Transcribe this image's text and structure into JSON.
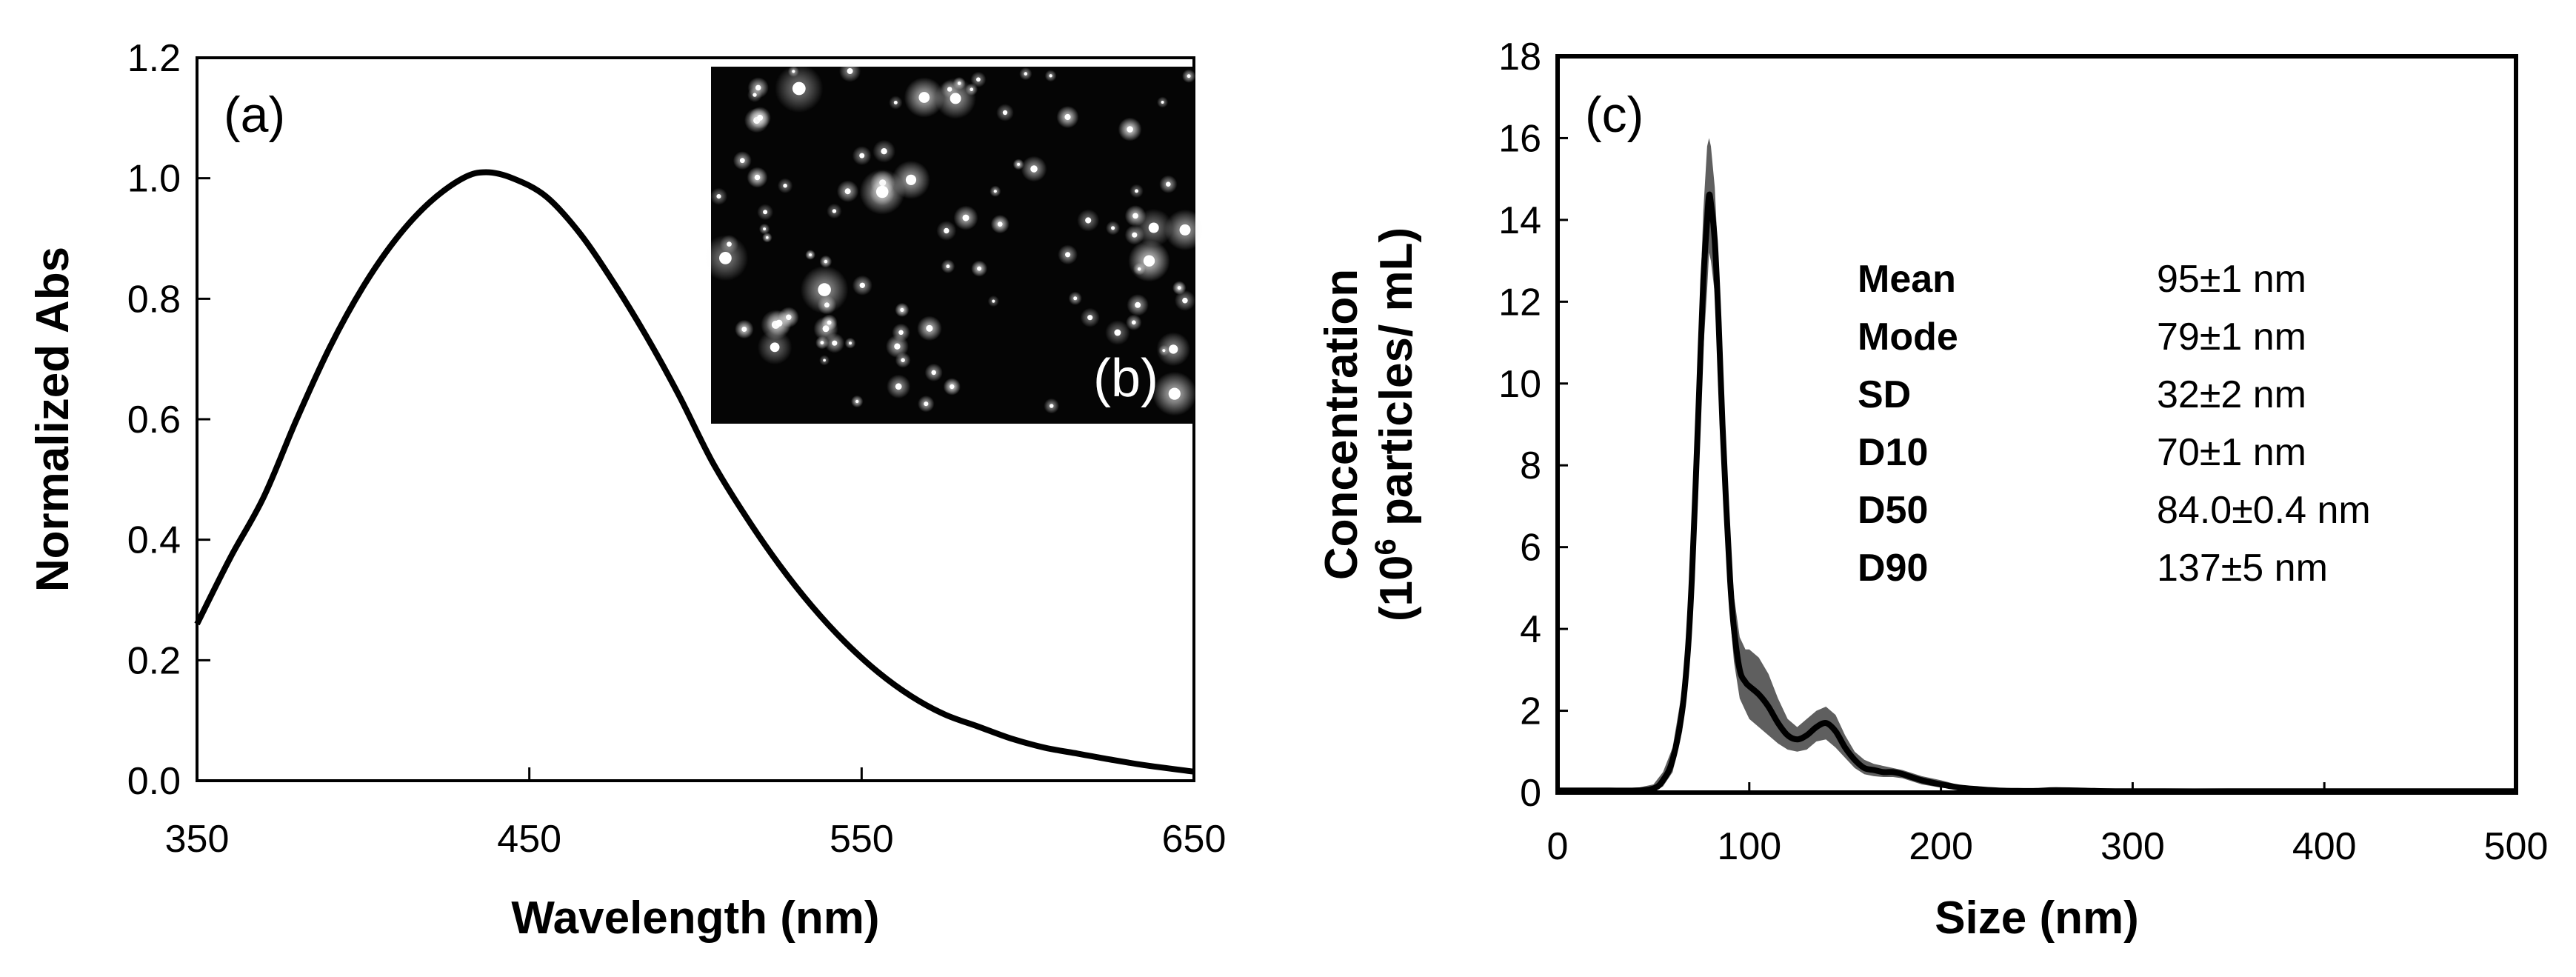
{
  "chart_data": [
    {
      "type": "line",
      "panel_label": "(a)",
      "title": "",
      "xlabel": "Wavelength (nm)",
      "ylabel": "Normalized Abs",
      "xlim": [
        350,
        650
      ],
      "ylim": [
        0.0,
        1.2
      ],
      "x_ticks": [
        "350",
        "450",
        "550",
        "650"
      ],
      "y_ticks": [
        "0.0",
        "0.2",
        "0.4",
        "0.6",
        "0.8",
        "1.0",
        "1.2"
      ],
      "grid": false,
      "series": [
        {
          "name": "Absorbance",
          "x": [
            350,
            360,
            370,
            380,
            390,
            400,
            410,
            420,
            430,
            437,
            445,
            455,
            465,
            475,
            485,
            495,
            505,
            515,
            525,
            535,
            545,
            555,
            565,
            575,
            585,
            595,
            605,
            615,
            625,
            635,
            650
          ],
          "y": [
            0.26,
            0.37,
            0.47,
            0.6,
            0.72,
            0.82,
            0.9,
            0.96,
            1.0,
            1.01,
            1.0,
            0.97,
            0.91,
            0.83,
            0.74,
            0.64,
            0.53,
            0.44,
            0.36,
            0.29,
            0.23,
            0.18,
            0.14,
            0.11,
            0.09,
            0.07,
            0.055,
            0.045,
            0.035,
            0.026,
            0.015
          ]
        }
      ],
      "inset": {
        "label": "(b)",
        "content": "dark-field particle image"
      }
    },
    {
      "type": "line",
      "panel_label": "(c)",
      "title": "",
      "xlabel": "Size (nm)",
      "ylabel_line1": "Concentration",
      "ylabel_line2_prefix": "(10",
      "ylabel_line2_sup": "6",
      "ylabel_line2_suffix": " particles/ mL)",
      "xlim": [
        0,
        500
      ],
      "ylim": [
        0,
        18
      ],
      "x_ticks": [
        "0",
        "100",
        "200",
        "300",
        "400",
        "500"
      ],
      "y_ticks": [
        "0",
        "2",
        "4",
        "6",
        "8",
        "10",
        "12",
        "14",
        "16",
        "18"
      ],
      "grid": false,
      "series": [
        {
          "name": "Mean concentration",
          "x": [
            0,
            20,
            40,
            50,
            55,
            60,
            65,
            68,
            70,
            72,
            74,
            76,
            78,
            79,
            80,
            82,
            84,
            86,
            88,
            90,
            92,
            95,
            98,
            100,
            105,
            110,
            115,
            120,
            125,
            130,
            135,
            140,
            145,
            150,
            155,
            160,
            165,
            170,
            175,
            180,
            190,
            200,
            210,
            220,
            230,
            240,
            250,
            260,
            280,
            300,
            350,
            400,
            450,
            500
          ],
          "y": [
            0.05,
            0.05,
            0.05,
            0.1,
            0.3,
            0.8,
            2.0,
            3.5,
            5.2,
            7.5,
            10.0,
            12.5,
            14.0,
            14.6,
            14.4,
            13.5,
            11.5,
            9.0,
            7.0,
            5.2,
            4.0,
            3.0,
            2.7,
            2.6,
            2.4,
            2.1,
            1.7,
            1.4,
            1.3,
            1.4,
            1.6,
            1.7,
            1.5,
            1.1,
            0.8,
            0.6,
            0.55,
            0.5,
            0.5,
            0.45,
            0.3,
            0.2,
            0.12,
            0.08,
            0.05,
            0.04,
            0.04,
            0.06,
            0.04,
            0.03,
            0.03,
            0.03,
            0.03,
            0.03
          ]
        },
        {
          "name": "Error band upper",
          "x": [
            0,
            20,
            40,
            50,
            55,
            60,
            65,
            68,
            70,
            72,
            74,
            76,
            78,
            79,
            80,
            82,
            84,
            86,
            88,
            90,
            92,
            95,
            98,
            100,
            105,
            110,
            115,
            120,
            125,
            130,
            135,
            140,
            145,
            150,
            155,
            160,
            165,
            170,
            175,
            180,
            190,
            200,
            210,
            220,
            230,
            240,
            250,
            260,
            280,
            300,
            350,
            400,
            450,
            500
          ],
          "y": [
            0.1,
            0.1,
            0.1,
            0.2,
            0.5,
            1.1,
            2.5,
            4.2,
            6.2,
            8.8,
            11.6,
            14.2,
            15.8,
            16.0,
            15.8,
            14.8,
            12.8,
            10.2,
            8.1,
            6.2,
            4.8,
            3.8,
            3.5,
            3.5,
            3.3,
            2.9,
            2.3,
            1.8,
            1.6,
            1.8,
            2.0,
            2.1,
            1.9,
            1.4,
            1.0,
            0.8,
            0.7,
            0.65,
            0.6,
            0.55,
            0.4,
            0.3,
            0.18,
            0.12,
            0.1,
            0.08,
            0.1,
            0.12,
            0.08,
            0.06,
            0.06,
            0.08,
            0.06,
            0.06
          ]
        },
        {
          "name": "Error band lower",
          "x": [
            0,
            20,
            40,
            50,
            55,
            60,
            65,
            68,
            70,
            72,
            74,
            76,
            78,
            79,
            80,
            82,
            84,
            86,
            88,
            90,
            92,
            95,
            98,
            100,
            105,
            110,
            115,
            120,
            125,
            130,
            135,
            140,
            145,
            150,
            155,
            160,
            165,
            170,
            175,
            180,
            190,
            200,
            210,
            220,
            230,
            240,
            250,
            260,
            280,
            300,
            350,
            400,
            450,
            500
          ],
          "y": [
            0.0,
            0.0,
            0.0,
            0.02,
            0.15,
            0.5,
            1.5,
            2.8,
            4.2,
            6.3,
            8.5,
            10.8,
            12.3,
            13.2,
            13.0,
            12.2,
            10.2,
            7.8,
            5.9,
            4.3,
            3.2,
            2.3,
            2.0,
            1.8,
            1.6,
            1.4,
            1.2,
            1.05,
            1.0,
            1.05,
            1.25,
            1.3,
            1.1,
            0.85,
            0.6,
            0.45,
            0.4,
            0.38,
            0.38,
            0.35,
            0.2,
            0.12,
            0.07,
            0.04,
            0.02,
            0.01,
            0.0,
            0.01,
            0.0,
            0.0,
            0.0,
            0.0,
            0.0,
            0.0
          ]
        }
      ],
      "statistics": [
        {
          "name": "Mean",
          "value": "95±1 nm"
        },
        {
          "name": "Mode",
          "value": "79±1 nm"
        },
        {
          "name": "SD",
          "value": "32±2 nm"
        },
        {
          "name": "D10",
          "value": "70±1 nm"
        },
        {
          "name": "D50",
          "value": "84.0±0.4 nm"
        },
        {
          "name": "D90",
          "value": "137±5 nm"
        }
      ]
    }
  ],
  "colors": {
    "line": "#000000",
    "band": "#5f5f5f",
    "inset_bg": "#050505",
    "particle": "#ffffff"
  }
}
